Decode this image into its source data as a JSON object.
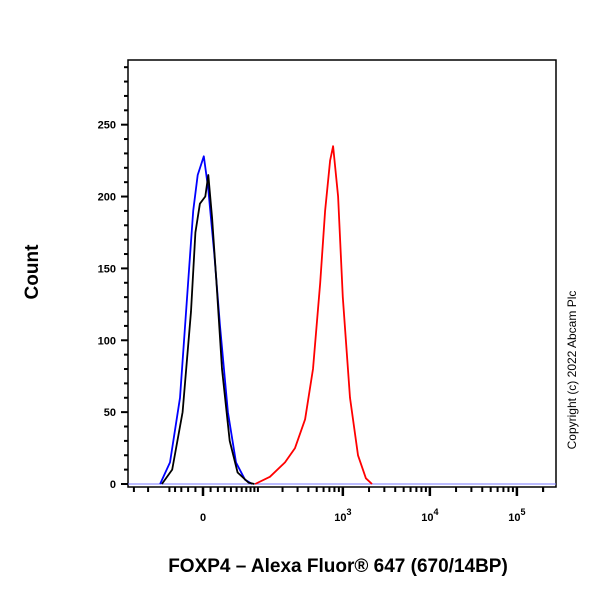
{
  "chart_data": {
    "type": "line",
    "title": "",
    "xlabel": "FOXP4 – Alexa Fluor® 647 (670/14BP)",
    "ylabel": "Count",
    "x_scale": "biexponential",
    "xlim": [
      -176,
      281000
    ],
    "ylim": [
      0,
      295
    ],
    "grid": false,
    "x_ticks": [
      {
        "value": 0,
        "label": "0"
      },
      {
        "value": 1000,
        "label": "10",
        "exp": "3"
      },
      {
        "value": 10000,
        "label": "10",
        "exp": "4"
      },
      {
        "value": 100000,
        "label": "10",
        "exp": "5"
      }
    ],
    "y_ticks": [
      0,
      50,
      100,
      150,
      200,
      250
    ],
    "series": [
      {
        "color": "#0000ff",
        "points": [
          [
            -69,
            0
          ],
          [
            -49,
            15
          ],
          [
            -32,
            60
          ],
          [
            -20,
            140
          ],
          [
            -13,
            190
          ],
          [
            -7,
            215
          ],
          [
            1,
            228
          ],
          [
            7,
            205
          ],
          [
            15,
            160
          ],
          [
            23,
            110
          ],
          [
            35,
            50
          ],
          [
            49,
            15
          ],
          [
            67,
            3
          ],
          [
            84,
            0
          ]
        ]
      },
      {
        "color": "#000000",
        "points": [
          [
            -65,
            0
          ],
          [
            -45,
            10
          ],
          [
            -28,
            50
          ],
          [
            -16,
            120
          ],
          [
            -10,
            175
          ],
          [
            -4,
            195
          ],
          [
            3,
            200
          ],
          [
            7,
            215
          ],
          [
            12,
            185
          ],
          [
            18,
            140
          ],
          [
            26,
            80
          ],
          [
            38,
            30
          ],
          [
            52,
            8
          ],
          [
            75,
            1
          ],
          [
            90,
            0
          ]
        ]
      },
      {
        "color": "#ff0000",
        "points": [
          [
            92,
            0
          ],
          [
            141,
            5
          ],
          [
            214,
            15
          ],
          [
            280,
            25
          ],
          [
            367,
            45
          ],
          [
            453,
            80
          ],
          [
            549,
            140
          ],
          [
            624,
            190
          ],
          [
            713,
            225
          ],
          [
            772,
            235
          ],
          [
            881,
            200
          ],
          [
            1000,
            130
          ],
          [
            1208,
            60
          ],
          [
            1495,
            20
          ],
          [
            1843,
            4
          ],
          [
            2163,
            0
          ]
        ]
      }
    ],
    "annotations": [
      "Copyright (c) 2022 Abcam Plc"
    ]
  }
}
